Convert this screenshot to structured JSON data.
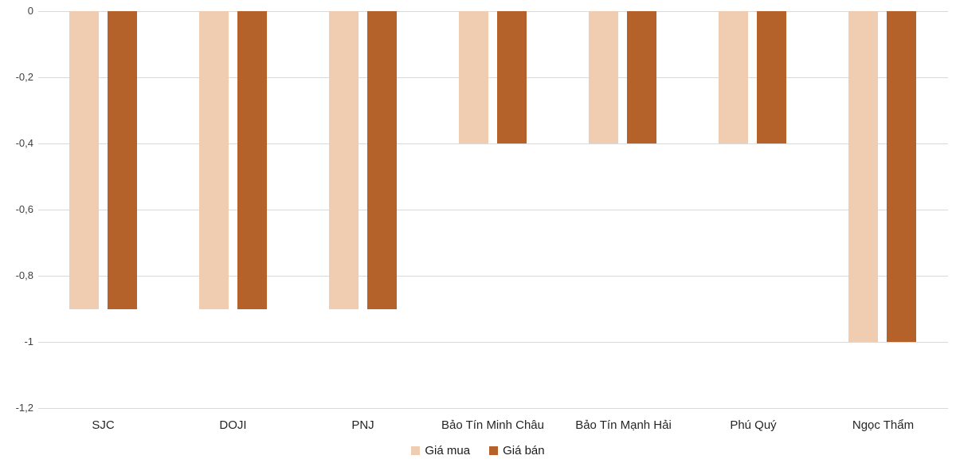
{
  "chart_data": {
    "type": "bar",
    "title": "",
    "xlabel": "",
    "ylabel": "",
    "categories": [
      "SJC",
      "DOJI",
      "PNJ",
      "Bảo Tín Minh Châu",
      "Bảo Tín Mạnh Hải",
      "Phú Quý",
      "Ngọc Thẩm"
    ],
    "series": [
      {
        "name": "Giá mua",
        "color": "#F0CDB1",
        "values": [
          -0.9,
          -0.9,
          -0.9,
          -0.4,
          -0.4,
          -0.4,
          -1
        ]
      },
      {
        "name": "Giá bán",
        "color": "#B5612A",
        "values": [
          -0.9,
          -0.9,
          -0.9,
          -0.4,
          -0.4,
          -0.4,
          -1
        ]
      }
    ],
    "ylim": [
      -1.2,
      0
    ],
    "yticks": [
      {
        "value": 0,
        "label": "0"
      },
      {
        "value": -0.2,
        "label": "-0,2"
      },
      {
        "value": -0.4,
        "label": "-0,4"
      },
      {
        "value": -0.6,
        "label": "-0,6"
      },
      {
        "value": -0.8,
        "label": "-0,8"
      },
      {
        "value": -1,
        "label": "-1"
      },
      {
        "value": -1.2,
        "label": "-1,2"
      }
    ],
    "grid": true,
    "legend_position": "bottom",
    "colors": {
      "gridline": "#D9D9D9",
      "tick_text": "#404040",
      "category_text": "#262626"
    }
  }
}
